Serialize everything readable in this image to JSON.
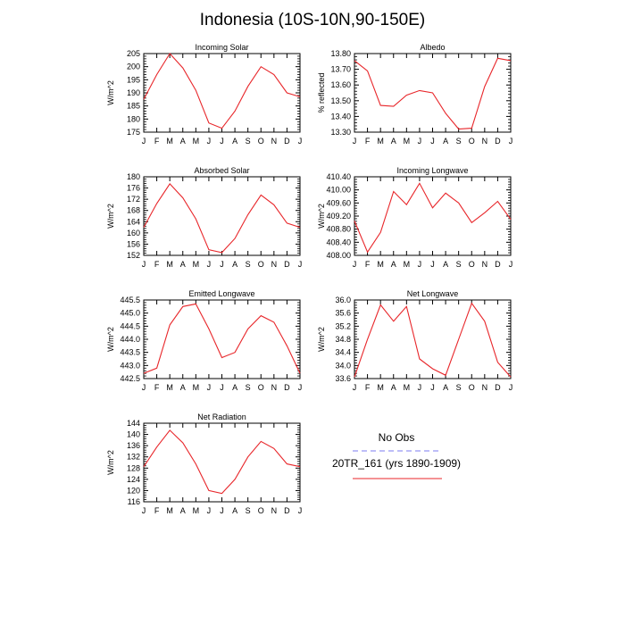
{
  "title": "Indonesia (10S-10N,90-150E)",
  "colors": {
    "model_line": "#e8262a",
    "obs_line": "#7b7bf0",
    "axis": "#000000"
  },
  "legend": {
    "obs_label": "No Obs",
    "model_label": "20TR_161 (yrs 1890-1909)"
  },
  "chart_data": [
    {
      "type": "line",
      "title": "Incoming Solar",
      "ylabel": "W/m^2",
      "categories": [
        "J",
        "F",
        "M",
        "A",
        "M",
        "J",
        "J",
        "A",
        "S",
        "O",
        "N",
        "D",
        "J"
      ],
      "ylim": [
        175,
        205
      ],
      "yticks": [
        175,
        180,
        185,
        190,
        195,
        200,
        205
      ],
      "yticklabels": [
        "175",
        "180",
        "185",
        "190",
        "195",
        "200",
        "205"
      ],
      "series": [
        {
          "name": "20TR_161 (yrs 1890-1909)",
          "values": [
            187.5,
            197,
            205,
            199.5,
            191,
            178.5,
            176.5,
            183,
            192.5,
            200,
            197,
            190,
            188.5
          ]
        }
      ]
    },
    {
      "type": "line",
      "title": "Albedo",
      "ylabel": "% reflected",
      "categories": [
        "J",
        "F",
        "M",
        "A",
        "M",
        "J",
        "J",
        "A",
        "S",
        "O",
        "N",
        "D",
        "J"
      ],
      "ylim": [
        13.3,
        13.8
      ],
      "yticks": [
        13.3,
        13.4,
        13.5,
        13.6,
        13.7,
        13.8
      ],
      "yticklabels": [
        "13.30",
        "13.40",
        "13.50",
        "13.60",
        "13.70",
        "13.80"
      ],
      "series": [
        {
          "name": "20TR_161 (yrs 1890-1909)",
          "values": [
            13.755,
            13.69,
            13.47,
            13.465,
            13.535,
            13.565,
            13.55,
            13.42,
            13.32,
            13.325,
            13.59,
            13.77,
            13.755
          ]
        }
      ]
    },
    {
      "type": "line",
      "title": "Absorbed Solar",
      "ylabel": "W/m^2",
      "categories": [
        "J",
        "F",
        "M",
        "A",
        "M",
        "J",
        "J",
        "A",
        "S",
        "O",
        "N",
        "D",
        "J"
      ],
      "ylim": [
        152,
        180
      ],
      "yticks": [
        152,
        156,
        160,
        164,
        168,
        172,
        176,
        180
      ],
      "yticklabels": [
        "152",
        "156",
        "160",
        "164",
        "168",
        "172",
        "176",
        "180"
      ],
      "series": [
        {
          "name": "20TR_161 (yrs 1890-1909)",
          "values": [
            162,
            170.5,
            177.5,
            172.5,
            165,
            154,
            153,
            158,
            166.5,
            173.5,
            170,
            163.5,
            162
          ]
        }
      ]
    },
    {
      "type": "line",
      "title": "Incoming Longwave",
      "ylabel": "W/m^2",
      "categories": [
        "J",
        "F",
        "M",
        "A",
        "M",
        "J",
        "J",
        "A",
        "S",
        "O",
        "N",
        "D",
        "J"
      ],
      "ylim": [
        408.0,
        410.4
      ],
      "yticks": [
        408.0,
        408.4,
        408.8,
        409.2,
        409.6,
        410.0,
        410.4
      ],
      "yticklabels": [
        "408.00",
        "408.40",
        "408.80",
        "409.20",
        "409.60",
        "410.00",
        "410.40"
      ],
      "series": [
        {
          "name": "20TR_161 (yrs 1890-1909)",
          "values": [
            409.05,
            408.1,
            408.7,
            409.95,
            409.55,
            410.2,
            409.45,
            409.9,
            409.6,
            409.0,
            409.3,
            409.65,
            409.1
          ]
        }
      ]
    },
    {
      "type": "line",
      "title": "Emitted Longwave",
      "ylabel": "W/m^2",
      "categories": [
        "J",
        "F",
        "M",
        "A",
        "M",
        "J",
        "J",
        "A",
        "S",
        "O",
        "N",
        "D",
        "J"
      ],
      "ylim": [
        442.5,
        445.5
      ],
      "yticks": [
        442.5,
        443.0,
        443.5,
        444.0,
        444.5,
        445.0,
        445.5
      ],
      "yticklabels": [
        "442.5",
        "443.0",
        "443.5",
        "444.0",
        "444.5",
        "445.0",
        "445.5"
      ],
      "series": [
        {
          "name": "20TR_161 (yrs 1890-1909)",
          "values": [
            442.7,
            442.9,
            444.55,
            445.25,
            445.35,
            444.4,
            443.3,
            443.5,
            444.4,
            444.9,
            444.65,
            443.75,
            442.7
          ]
        }
      ]
    },
    {
      "type": "line",
      "title": "Net Longwave",
      "ylabel": "W/m^2",
      "categories": [
        "J",
        "F",
        "M",
        "A",
        "M",
        "J",
        "J",
        "A",
        "S",
        "O",
        "N",
        "D",
        "J"
      ],
      "ylim": [
        33.6,
        36.0
      ],
      "yticks": [
        33.6,
        34.0,
        34.4,
        34.8,
        35.2,
        35.6,
        36.0
      ],
      "yticklabels": [
        "33.6",
        "34.0",
        "34.4",
        "34.8",
        "35.2",
        "35.6",
        "36.0"
      ],
      "series": [
        {
          "name": "20TR_161 (yrs 1890-1909)",
          "values": [
            33.65,
            34.8,
            35.85,
            35.35,
            35.8,
            34.2,
            33.9,
            33.7,
            34.8,
            35.9,
            35.35,
            34.1,
            33.65
          ]
        }
      ]
    },
    {
      "type": "line",
      "title": "Net Radiation",
      "ylabel": "W/m^2",
      "categories": [
        "J",
        "F",
        "M",
        "A",
        "M",
        "J",
        "J",
        "A",
        "S",
        "O",
        "N",
        "D",
        "J"
      ],
      "ylim": [
        116,
        144
      ],
      "yticks": [
        116,
        120,
        124,
        128,
        132,
        136,
        140,
        144
      ],
      "yticklabels": [
        "116",
        "120",
        "124",
        "128",
        "132",
        "136",
        "140",
        "144"
      ],
      "series": [
        {
          "name": "20TR_161 (yrs 1890-1909)",
          "values": [
            128.5,
            135.5,
            141.5,
            137,
            129.5,
            120,
            119,
            124,
            132,
            137.5,
            135,
            129.5,
            128.5
          ]
        }
      ]
    }
  ]
}
